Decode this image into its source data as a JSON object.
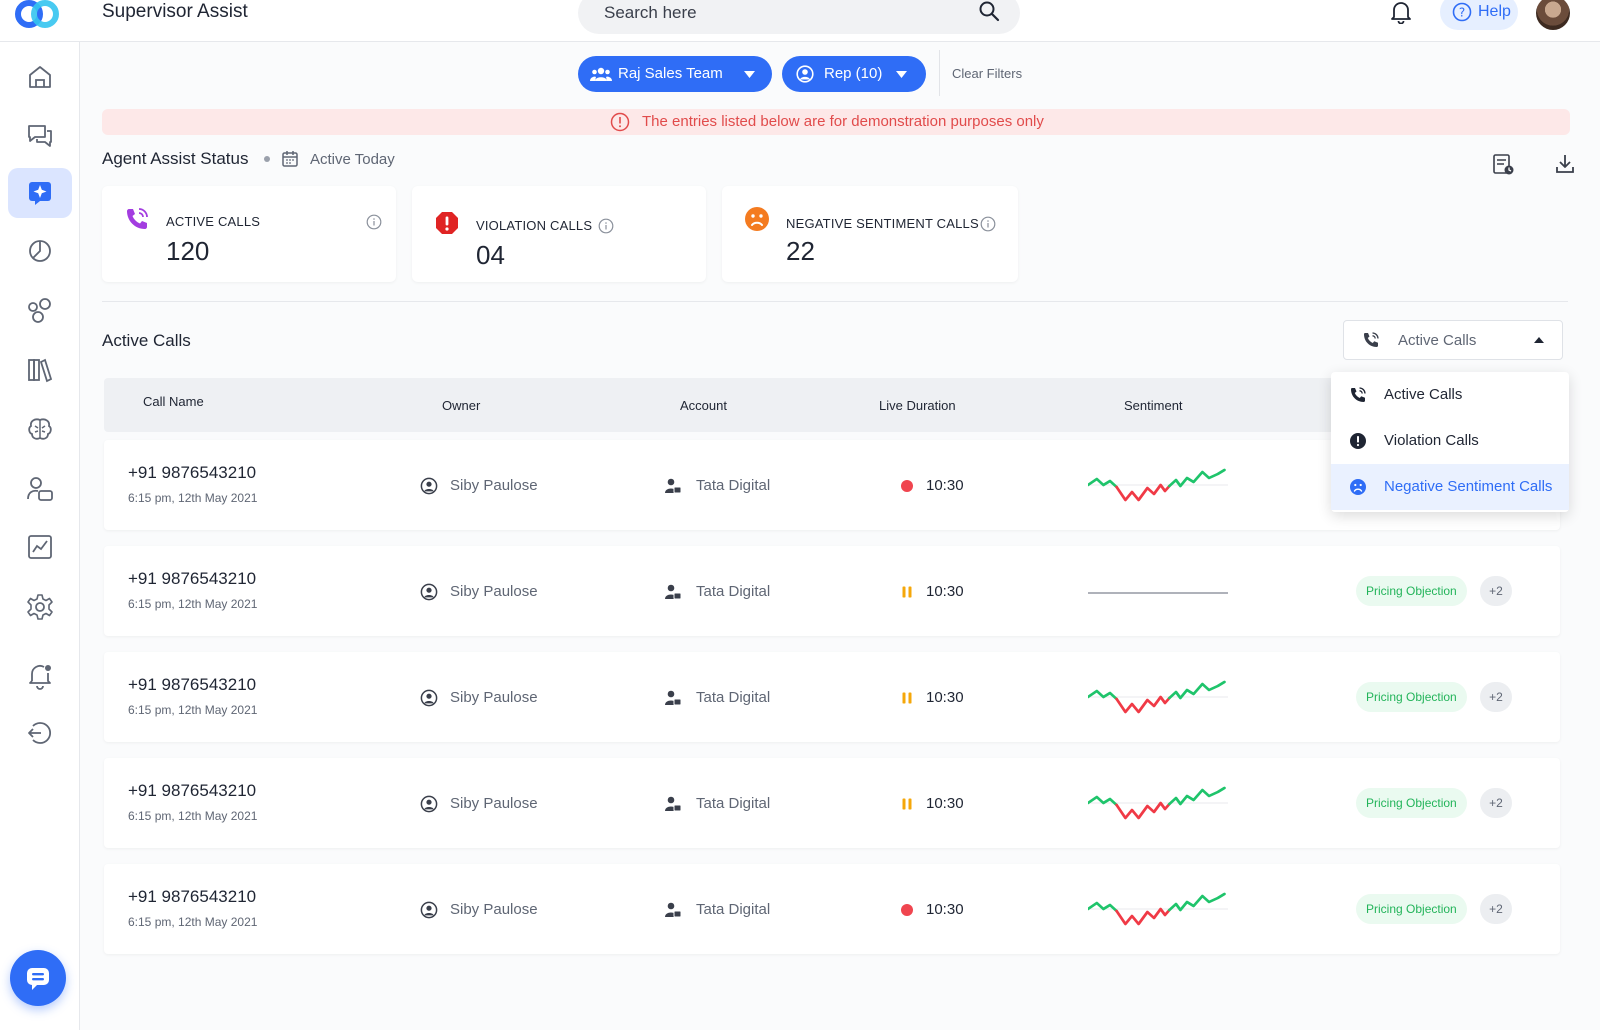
{
  "header": {
    "app_title": "Supervisor Assist",
    "search_placeholder": "Search here",
    "help_label": "Help"
  },
  "sidebar": {
    "items": [
      {
        "name": "home",
        "icon": "home-icon"
      },
      {
        "name": "conversations",
        "icon": "chat-bubbles-icon"
      },
      {
        "name": "agent-assist",
        "icon": "sparkle-icon",
        "active": true
      },
      {
        "name": "analytics",
        "icon": "pie-chart-icon"
      },
      {
        "name": "groups",
        "icon": "circles-icon"
      },
      {
        "name": "library",
        "icon": "books-icon"
      },
      {
        "name": "intelligence",
        "icon": "brain-icon"
      },
      {
        "name": "users",
        "icon": "user-card-icon"
      },
      {
        "name": "reports",
        "icon": "line-chart-icon"
      },
      {
        "name": "settings",
        "icon": "gear-icon"
      },
      {
        "name": "notifications",
        "icon": "bell-alert-icon"
      },
      {
        "name": "logout",
        "icon": "logout-icon"
      }
    ],
    "chat_icon": "chat-icon"
  },
  "filters": {
    "team_label": "Raj Sales Team",
    "rep_label": "Rep (10)",
    "clear_label": "Clear Filters"
  },
  "banner": {
    "text": "The entries listed below are for demonstration purposes only"
  },
  "status": {
    "title": "Agent Assist Status",
    "period": "Active Today",
    "cards": [
      {
        "label": "ACTIVE CALLS",
        "value": "120",
        "icon": "phone-ringing-icon",
        "color": "#a33de0"
      },
      {
        "label": "VIOLATION CALLS",
        "value": "04",
        "icon": "alert-octagon-icon",
        "color": "#e02424"
      },
      {
        "label": "NEGATIVE SENTIMENT CALLS",
        "value": "22",
        "icon": "sad-face-icon",
        "color": "#f47b20"
      }
    ]
  },
  "active_calls": {
    "title": "Active Calls",
    "select_value": "Active Calls",
    "columns": [
      "Call Name",
      "Owner",
      "Account",
      "Live Duration",
      "Sentiment"
    ],
    "menu": [
      {
        "label": "Active Calls",
        "icon": "phone-ringing-icon"
      },
      {
        "label": "Violation Calls",
        "icon": "alert-circle-icon"
      },
      {
        "label": "Negative Sentiment Calls",
        "icon": "sad-face-icon",
        "selected": true
      }
    ],
    "rows": [
      {
        "number": "+91 9876543210",
        "date": "6:15 pm, 12th May 2021",
        "owner": "Siby Paulose",
        "account": "Tata Digital",
        "status": "live",
        "duration": "10:30",
        "sentiment": "mixed",
        "tag": "",
        "more": ""
      },
      {
        "number": "+91 9876543210",
        "date": "6:15 pm, 12th May 2021",
        "owner": "Siby Paulose",
        "account": "Tata Digital",
        "status": "paused",
        "duration": "10:30",
        "sentiment": "flat",
        "tag": "Pricing Objection",
        "more": "+2"
      },
      {
        "number": "+91 9876543210",
        "date": "6:15 pm, 12th May 2021",
        "owner": "Siby Paulose",
        "account": "Tata Digital",
        "status": "paused",
        "duration": "10:30",
        "sentiment": "mixed",
        "tag": "Pricing Objection",
        "more": "+2"
      },
      {
        "number": "+91 9876543210",
        "date": "6:15 pm, 12th May 2021",
        "owner": "Siby Paulose",
        "account": "Tata Digital",
        "status": "paused",
        "duration": "10:30",
        "sentiment": "mixed",
        "tag": "Pricing Objection",
        "more": "+2"
      },
      {
        "number": "+91 9876543210",
        "date": "6:15 pm, 12th May 2021",
        "owner": "Siby Paulose",
        "account": "Tata Digital",
        "status": "live",
        "duration": "10:30",
        "sentiment": "mixed",
        "tag": "Pricing Objection",
        "more": "+2"
      }
    ]
  },
  "colors": {
    "primary": "#2f6df6",
    "live": "#f0454f",
    "paused": "#f5a70a",
    "positive": "#1fc46b",
    "negative": "#f03a46",
    "tag_text": "#23b45a"
  }
}
